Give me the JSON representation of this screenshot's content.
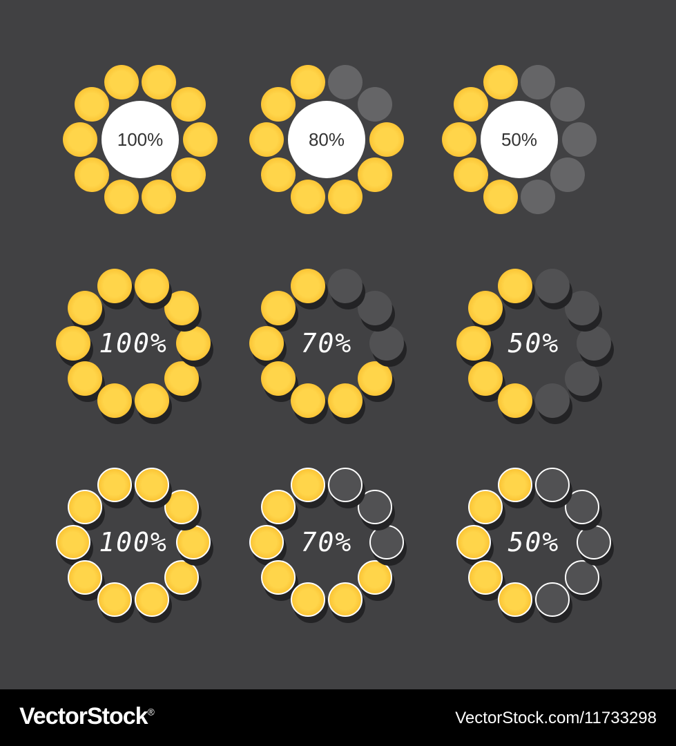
{
  "colors": {
    "background": "#414143",
    "filled_outer": "#f6b21e",
    "filled_inner": "#ffd54a",
    "empty_flat": "#656567",
    "empty_raised": "#515153",
    "shadow": "#232325",
    "outline": "#ffffff",
    "center_disc": "#ffffff",
    "center_text": "#333333"
  },
  "loaders": [
    {
      "label": "100%",
      "progress": 1.0,
      "style": "flat"
    },
    {
      "label": "80%",
      "progress": 0.8,
      "style": "flat"
    },
    {
      "label": "50%",
      "progress": 0.5,
      "style": "flat"
    },
    {
      "label": "100%",
      "progress": 1.0,
      "style": "raised"
    },
    {
      "label": "70%",
      "progress": 0.7,
      "style": "raised"
    },
    {
      "label": "50%",
      "progress": 0.5,
      "style": "raised"
    },
    {
      "label": "100%",
      "progress": 1.0,
      "style": "outlined"
    },
    {
      "label": "70%",
      "progress": 0.7,
      "style": "outlined"
    },
    {
      "label": "50%",
      "progress": 0.5,
      "style": "outlined"
    }
  ],
  "footer": {
    "brand": "VectorStock",
    "registered": "®",
    "image_id": "VectorStock.com/11733298"
  }
}
